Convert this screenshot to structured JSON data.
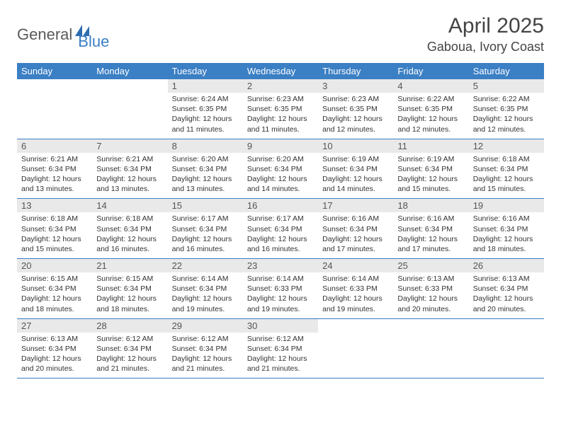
{
  "logo": {
    "part1": "General",
    "part2": "Blue"
  },
  "title": "April 2025",
  "location": "Gaboua, Ivory Coast",
  "colors": {
    "header_bg": "#3b7fc4",
    "header_text": "#ffffff",
    "daynum_bg": "#e9e9e9",
    "border": "#3b7fc4",
    "text": "#333333",
    "logo_gray": "#5a5a5a",
    "logo_blue": "#3b7fc4"
  },
  "weekdays": [
    "Sunday",
    "Monday",
    "Tuesday",
    "Wednesday",
    "Thursday",
    "Friday",
    "Saturday"
  ],
  "labels": {
    "sunrise": "Sunrise:",
    "sunset": "Sunset:",
    "daylight": "Daylight:"
  },
  "weeks": [
    [
      null,
      null,
      {
        "n": "1",
        "sr": "6:24 AM",
        "ss": "6:35 PM",
        "dl": "12 hours and 11 minutes."
      },
      {
        "n": "2",
        "sr": "6:23 AM",
        "ss": "6:35 PM",
        "dl": "12 hours and 11 minutes."
      },
      {
        "n": "3",
        "sr": "6:23 AM",
        "ss": "6:35 PM",
        "dl": "12 hours and 12 minutes."
      },
      {
        "n": "4",
        "sr": "6:22 AM",
        "ss": "6:35 PM",
        "dl": "12 hours and 12 minutes."
      },
      {
        "n": "5",
        "sr": "6:22 AM",
        "ss": "6:35 PM",
        "dl": "12 hours and 12 minutes."
      }
    ],
    [
      {
        "n": "6",
        "sr": "6:21 AM",
        "ss": "6:34 PM",
        "dl": "12 hours and 13 minutes."
      },
      {
        "n": "7",
        "sr": "6:21 AM",
        "ss": "6:34 PM",
        "dl": "12 hours and 13 minutes."
      },
      {
        "n": "8",
        "sr": "6:20 AM",
        "ss": "6:34 PM",
        "dl": "12 hours and 13 minutes."
      },
      {
        "n": "9",
        "sr": "6:20 AM",
        "ss": "6:34 PM",
        "dl": "12 hours and 14 minutes."
      },
      {
        "n": "10",
        "sr": "6:19 AM",
        "ss": "6:34 PM",
        "dl": "12 hours and 14 minutes."
      },
      {
        "n": "11",
        "sr": "6:19 AM",
        "ss": "6:34 PM",
        "dl": "12 hours and 15 minutes."
      },
      {
        "n": "12",
        "sr": "6:18 AM",
        "ss": "6:34 PM",
        "dl": "12 hours and 15 minutes."
      }
    ],
    [
      {
        "n": "13",
        "sr": "6:18 AM",
        "ss": "6:34 PM",
        "dl": "12 hours and 15 minutes."
      },
      {
        "n": "14",
        "sr": "6:18 AM",
        "ss": "6:34 PM",
        "dl": "12 hours and 16 minutes."
      },
      {
        "n": "15",
        "sr": "6:17 AM",
        "ss": "6:34 PM",
        "dl": "12 hours and 16 minutes."
      },
      {
        "n": "16",
        "sr": "6:17 AM",
        "ss": "6:34 PM",
        "dl": "12 hours and 16 minutes."
      },
      {
        "n": "17",
        "sr": "6:16 AM",
        "ss": "6:34 PM",
        "dl": "12 hours and 17 minutes."
      },
      {
        "n": "18",
        "sr": "6:16 AM",
        "ss": "6:34 PM",
        "dl": "12 hours and 17 minutes."
      },
      {
        "n": "19",
        "sr": "6:16 AM",
        "ss": "6:34 PM",
        "dl": "12 hours and 18 minutes."
      }
    ],
    [
      {
        "n": "20",
        "sr": "6:15 AM",
        "ss": "6:34 PM",
        "dl": "12 hours and 18 minutes."
      },
      {
        "n": "21",
        "sr": "6:15 AM",
        "ss": "6:34 PM",
        "dl": "12 hours and 18 minutes."
      },
      {
        "n": "22",
        "sr": "6:14 AM",
        "ss": "6:34 PM",
        "dl": "12 hours and 19 minutes."
      },
      {
        "n": "23",
        "sr": "6:14 AM",
        "ss": "6:33 PM",
        "dl": "12 hours and 19 minutes."
      },
      {
        "n": "24",
        "sr": "6:14 AM",
        "ss": "6:33 PM",
        "dl": "12 hours and 19 minutes."
      },
      {
        "n": "25",
        "sr": "6:13 AM",
        "ss": "6:33 PM",
        "dl": "12 hours and 20 minutes."
      },
      {
        "n": "26",
        "sr": "6:13 AM",
        "ss": "6:34 PM",
        "dl": "12 hours and 20 minutes."
      }
    ],
    [
      {
        "n": "27",
        "sr": "6:13 AM",
        "ss": "6:34 PM",
        "dl": "12 hours and 20 minutes."
      },
      {
        "n": "28",
        "sr": "6:12 AM",
        "ss": "6:34 PM",
        "dl": "12 hours and 21 minutes."
      },
      {
        "n": "29",
        "sr": "6:12 AM",
        "ss": "6:34 PM",
        "dl": "12 hours and 21 minutes."
      },
      {
        "n": "30",
        "sr": "6:12 AM",
        "ss": "6:34 PM",
        "dl": "12 hours and 21 minutes."
      },
      null,
      null,
      null
    ]
  ]
}
